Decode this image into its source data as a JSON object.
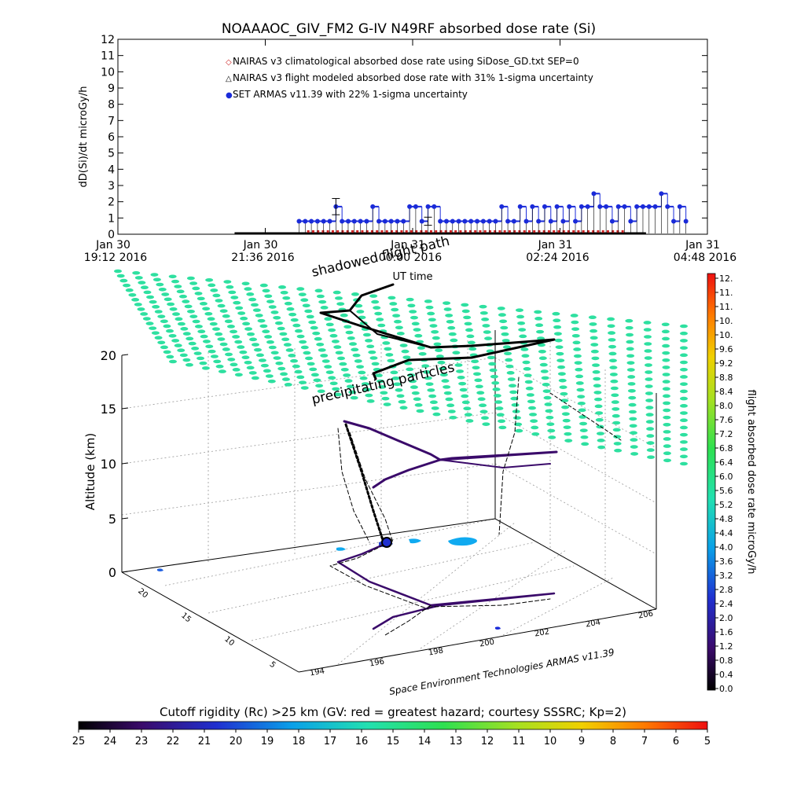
{
  "title": "NOAAAOC_GIV_FM2 G-IV    N49RF  absorbed dose rate (Si)",
  "chart_data": [
    {
      "type": "scatter",
      "ylabel": "dD(Si)/dt microGy/h",
      "ylim": [
        0,
        12
      ],
      "yticks": [
        "0",
        "1",
        "2",
        "3",
        "4",
        "5",
        "6",
        "7",
        "8",
        "9",
        "10",
        "11",
        "12"
      ],
      "xticks": [
        {
          "line1": "Jan 30",
          "line2": "19:12 2016"
        },
        {
          "line1": "Jan 30",
          "line2": "21:36 2016"
        },
        {
          "line1": "Jan 31",
          "line2": "00:00 2016"
        },
        {
          "line1": "Jan 31",
          "line2": "02:24 2016"
        },
        {
          "line1": "Jan 31",
          "line2": "04:48 2016"
        }
      ],
      "xlim_hours": [
        0,
        9.6
      ],
      "xlabel": "UT time",
      "legend": [
        {
          "label": "NAIRAS v3 climatological absorbed dose rate using SiDose_GD.txt SEP=0",
          "marker": "◇",
          "color": "#cc2222"
        },
        {
          "label": "NAIRAS v3 flight modeled absorbed dose rate with 31% 1-sigma uncertainty",
          "marker": "△",
          "color": "#000000"
        },
        {
          "label": "SET ARMAS v11.39 with 22% 1-sigma uncertainty",
          "marker": "●",
          "color": "#1a2bd9"
        }
      ],
      "series": [
        {
          "name": "NAIRAS v3 climatological absorbed dose rate using SiDose_GD.txt SEP=0",
          "color": "#cc2222",
          "start_h": 3.1,
          "end_h": 8.3,
          "level": 0.15
        },
        {
          "name": "NAIRAS v3 flight modeled absorbed dose rate with 31% 1-sigma uncertainty",
          "color": "#000000",
          "start_h": 1.9,
          "end_h": 8.6,
          "level": 0.05
        },
        {
          "name": "SET ARMAS v11.39 with 22% 1-sigma uncertainty",
          "color": "#1a2bd9",
          "points": [
            [
              2.95,
              0.8
            ],
            [
              3.05,
              0.8
            ],
            [
              3.15,
              0.8
            ],
            [
              3.25,
              0.8
            ],
            [
              3.35,
              0.8
            ],
            [
              3.45,
              0.8
            ],
            [
              3.55,
              1.7
            ],
            [
              3.65,
              0.8
            ],
            [
              3.75,
              0.8
            ],
            [
              3.85,
              0.8
            ],
            [
              3.95,
              0.8
            ],
            [
              4.05,
              0.8
            ],
            [
              4.15,
              1.7
            ],
            [
              4.25,
              0.8
            ],
            [
              4.35,
              0.8
            ],
            [
              4.45,
              0.8
            ],
            [
              4.55,
              0.8
            ],
            [
              4.65,
              0.8
            ],
            [
              4.75,
              1.7
            ],
            [
              4.85,
              1.7
            ],
            [
              4.95,
              0.8
            ],
            [
              5.05,
              1.7
            ],
            [
              5.15,
              1.7
            ],
            [
              5.25,
              0.8
            ],
            [
              5.35,
              0.8
            ],
            [
              5.45,
              0.8
            ],
            [
              5.55,
              0.8
            ],
            [
              5.65,
              0.8
            ],
            [
              5.75,
              0.8
            ],
            [
              5.85,
              0.8
            ],
            [
              5.95,
              0.8
            ],
            [
              6.05,
              0.8
            ],
            [
              6.15,
              0.8
            ],
            [
              6.25,
              1.7
            ],
            [
              6.35,
              0.8
            ],
            [
              6.45,
              0.8
            ],
            [
              6.55,
              1.7
            ],
            [
              6.65,
              0.8
            ],
            [
              6.75,
              1.7
            ],
            [
              6.85,
              0.8
            ],
            [
              6.95,
              1.7
            ],
            [
              7.05,
              0.8
            ],
            [
              7.15,
              1.7
            ],
            [
              7.25,
              0.8
            ],
            [
              7.35,
              1.7
            ],
            [
              7.45,
              0.8
            ],
            [
              7.55,
              1.7
            ],
            [
              7.65,
              1.7
            ],
            [
              7.75,
              2.5
            ],
            [
              7.85,
              1.7
            ],
            [
              7.95,
              1.7
            ],
            [
              8.05,
              0.8
            ],
            [
              8.15,
              1.7
            ],
            [
              8.25,
              1.7
            ],
            [
              8.35,
              0.8
            ],
            [
              8.45,
              1.7
            ],
            [
              8.55,
              1.7
            ],
            [
              8.65,
              1.7
            ],
            [
              8.75,
              1.7
            ],
            [
              8.85,
              2.5
            ],
            [
              8.95,
              1.7
            ],
            [
              9.05,
              0.8
            ],
            [
              9.15,
              1.7
            ],
            [
              9.25,
              0.8
            ]
          ]
        }
      ]
    },
    {
      "type": "3d-flight-track",
      "zlabel": "Altitude (km)",
      "zticks": [
        "0",
        "5",
        "10",
        "15",
        "20"
      ],
      "yticks": [
        "20",
        "15",
        "10",
        "5"
      ],
      "xticks": [
        "194",
        "196",
        "198",
        "200",
        "202",
        "204",
        "206"
      ],
      "annotations": [
        "shadowed flight path",
        "precipitating particles",
        "Space Environment Technologies ARMAS v11.39"
      ]
    }
  ],
  "colorbar_right": {
    "label": "flight absorbed dose rate microGy/h",
    "ticks": [
      "12.",
      "11.",
      "11.",
      "10.",
      "10.",
      "9.6",
      "9.2",
      "8.8",
      "8.4",
      "8.0",
      "7.6",
      "7.2",
      "6.8",
      "6.4",
      "6.0",
      "5.6",
      "5.2",
      "4.8",
      "4.4",
      "4.0",
      "3.6",
      "3.2",
      "2.8",
      "2.4",
      "2.0",
      "1.6",
      "1.2",
      "0.8",
      "0.4",
      "0.0"
    ]
  },
  "colorbar_bottom": {
    "label": "Cutoff rigidity (Rc) >25 km (GV: red = greatest hazard; courtesy SSSRC; Kp=2)",
    "ticks": [
      "25",
      "24",
      "23",
      "22",
      "21",
      "20",
      "19",
      "18",
      "17",
      "16",
      "15",
      "14",
      "13",
      "12",
      "11",
      "10",
      "9",
      "8",
      "7",
      "6",
      "5"
    ]
  }
}
